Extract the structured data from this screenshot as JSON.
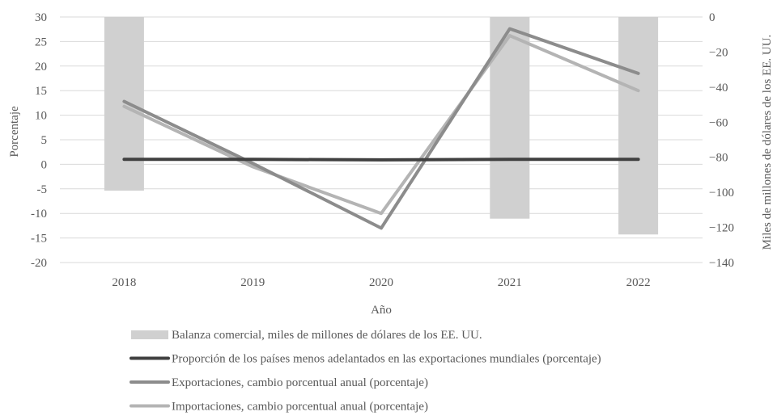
{
  "chart_data": {
    "type": "bar+line",
    "categories": [
      "2018",
      "2019",
      "2020",
      "2021",
      "2022"
    ],
    "xlabel": "Año",
    "ylabel_left": "Porcentaje",
    "ylabel_right": "Miles de millones de dólares de los EE. UU.",
    "ylim_left": [
      -20,
      30
    ],
    "yticks_left": [
      30,
      25,
      20,
      15,
      10,
      5,
      0,
      -5,
      -10,
      -15,
      -20
    ],
    "ylim_right": [
      -140,
      0
    ],
    "yticks_right": [
      0,
      -20,
      -40,
      -60,
      -80,
      -100,
      -120,
      -140
    ],
    "grid": true,
    "legend_position": "bottom",
    "bars": {
      "name": "Balanza comercial, miles de millones de dólares de los EE. UU.",
      "axis": "right",
      "color": "#d0d0d0",
      "values": [
        -99,
        null,
        null,
        -115,
        -124
      ]
    },
    "series": [
      {
        "name": "Proporción de los países menos adelantados en las exportaciones mundiales (porcentaje)",
        "axis": "left",
        "color": "#404040",
        "values": [
          1.0,
          1.0,
          0.9,
          1.0,
          1.0
        ]
      },
      {
        "name": "Exportaciones, cambio porcentual anual (porcentaje)",
        "axis": "left",
        "color": "#8c8c8c",
        "values": [
          12.8,
          0.2,
          -13.0,
          27.6,
          18.5
        ]
      },
      {
        "name": "Importaciones, cambio porcentual anual (porcentaje)",
        "axis": "left",
        "color": "#b4b4b4",
        "values": [
          11.8,
          -0.5,
          -10.0,
          26.2,
          15.0
        ]
      }
    ]
  }
}
